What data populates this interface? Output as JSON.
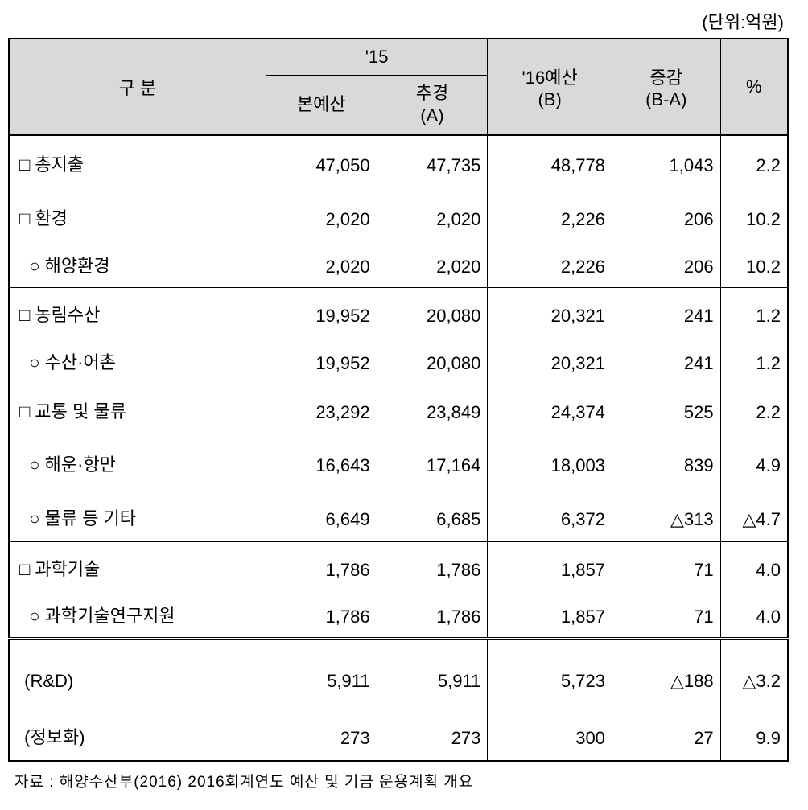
{
  "unit_label": "(단위:억원)",
  "headers": {
    "category": "구   분",
    "y15": "'15",
    "main_budget": "본예산",
    "supp_budget": "추경\n(A)",
    "budget_16": "'16예산\n(B)",
    "diff": "증감\n(B-A)",
    "pct": "%"
  },
  "groups": [
    {
      "style": "group-1",
      "rows": [
        {
          "cls": "row-single",
          "c": "□ 총지출",
          "v": [
            "47,050",
            "47,735",
            "48,778",
            "1,043",
            "2.2"
          ]
        }
      ]
    },
    {
      "style": "",
      "rows": [
        {
          "cls": "row-first",
          "c": "□ 환경",
          "v": [
            "2,020",
            "2,020",
            "2,226",
            "206",
            "10.2"
          ]
        },
        {
          "cls": "row-sub",
          "c": "  ○ 해양환경",
          "v": [
            "2,020",
            "2,020",
            "2,226",
            "206",
            "10.2"
          ]
        }
      ]
    },
    {
      "style": "",
      "rows": [
        {
          "cls": "row-first",
          "c": "□ 농림수산",
          "v": [
            "19,952",
            "20,080",
            "20,321",
            "241",
            "1.2"
          ]
        },
        {
          "cls": "row-sub",
          "c": "  ○ 수산·어촌",
          "v": [
            "19,952",
            "20,080",
            "20,321",
            "241",
            "1.2"
          ]
        }
      ]
    },
    {
      "style": "",
      "rows": [
        {
          "cls": "row-first",
          "c": "□ 교통 및 물류",
          "v": [
            "23,292",
            "23,849",
            "24,374",
            "525",
            "2.2"
          ]
        },
        {
          "cls": "row-tall",
          "c": "  ○ 해운·항만",
          "v": [
            "16,643",
            "17,164",
            "18,003",
            "839",
            "4.9"
          ]
        },
        {
          "cls": "row-tall",
          "c": "  ○ 물류 등 기타",
          "v": [
            "6,649",
            "6,685",
            "6,372",
            "△313",
            "△4.7"
          ]
        }
      ]
    },
    {
      "style": "",
      "rows": [
        {
          "cls": "row-first",
          "c": "□ 과학기술",
          "v": [
            "1,786",
            "1,786",
            "1,857",
            "71",
            "4.0"
          ]
        },
        {
          "cls": "row-sub",
          "c": "  ○ 과학기술연구지원",
          "v": [
            "1,786",
            "1,786",
            "1,857",
            "71",
            "4.0"
          ]
        }
      ]
    },
    {
      "style": "double-top last",
      "rows": [
        {
          "cls": "row-rd",
          "c": " (R&D)",
          "v": [
            "5,911",
            "5,911",
            "5,723",
            "△188",
            "△3.2"
          ]
        },
        {
          "cls": "row-info",
          "c": " (정보화)",
          "v": [
            "273",
            "273",
            "300",
            "27",
            "9.9"
          ]
        }
      ]
    }
  ],
  "source": "자료 : 해양수산부(2016) 2016회계연도 예산 및 기금 운용계획 개요",
  "colors": {
    "header_bg": "#d9d9d9",
    "border": "#000000",
    "background": "#ffffff",
    "text": "#000000"
  }
}
